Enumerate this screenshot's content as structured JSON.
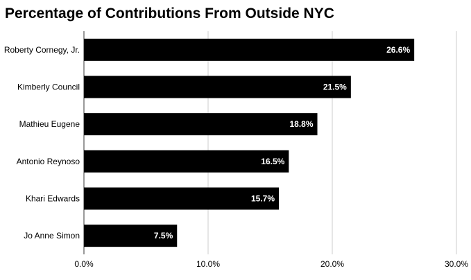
{
  "chart_data": {
    "type": "bar",
    "orientation": "horizontal",
    "title": "Percentage of Contributions From Outside NYC",
    "xlabel": "",
    "ylabel": "",
    "categories": [
      "Roberty Cornegy, Jr.",
      "Kimberly Council",
      "Mathieu Eugene",
      "Antonio Reynoso",
      "Khari Edwards",
      "Jo Anne Simon"
    ],
    "values": [
      26.6,
      21.5,
      18.8,
      16.5,
      15.7,
      7.5
    ],
    "data_labels": [
      "26.6%",
      "21.5%",
      "18.8%",
      "16.5%",
      "15.7%",
      "7.5%"
    ],
    "xlim": [
      0,
      30
    ],
    "x_ticks": [
      0,
      10,
      20,
      30
    ],
    "x_tick_labels": [
      "0.0%",
      "10.0%",
      "20.0%",
      "30.0%"
    ],
    "grid": "vertical",
    "legend": "none",
    "bar_color": "#000000",
    "label_color": "#ffffff",
    "grid_color": "#cccccc"
  }
}
